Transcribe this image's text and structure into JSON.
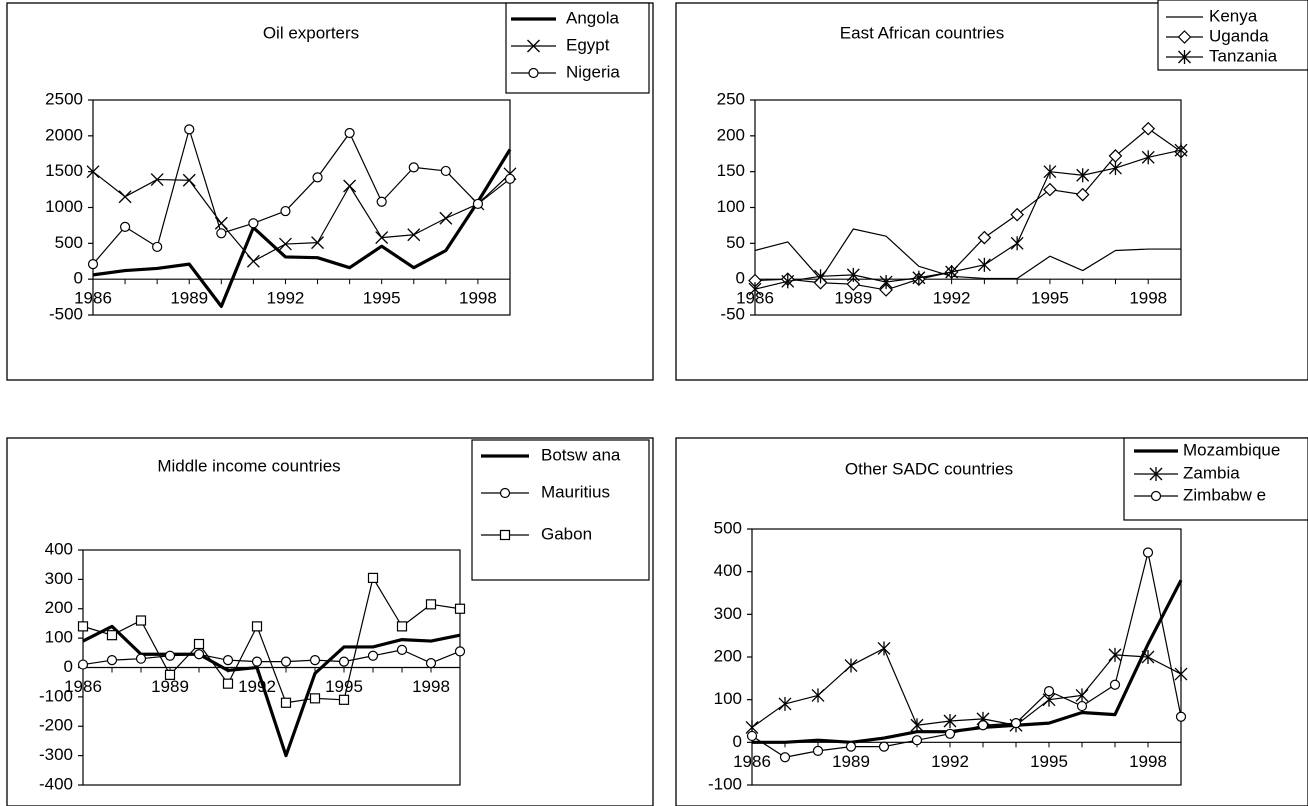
{
  "chart_data": [
    {
      "type": "line",
      "title": "Oil exporters",
      "x": [
        1986,
        1987,
        1988,
        1989,
        1990,
        1991,
        1992,
        1993,
        1994,
        1995,
        1996,
        1997,
        1998,
        1999
      ],
      "x_ticks": [
        1986,
        1989,
        1992,
        1995,
        1998
      ],
      "ylim": [
        -500,
        2500
      ],
      "y_ticks": [
        -500,
        0,
        500,
        1000,
        1500,
        2000,
        2500
      ],
      "grid": false,
      "legend_position": "top-right",
      "series": [
        {
          "name": "Angola",
          "marker": "none",
          "thick": true,
          "values": [
            60,
            120,
            150,
            210,
            -380,
            720,
            310,
            300,
            160,
            460,
            160,
            400,
            1080,
            1810
          ]
        },
        {
          "name": "Egypt",
          "marker": "x",
          "values": [
            1500,
            1150,
            1390,
            1380,
            780,
            250,
            490,
            510,
            1300,
            580,
            620,
            850,
            1050,
            1470
          ]
        },
        {
          "name": "Nigeria",
          "marker": "circle",
          "values": [
            210,
            730,
            450,
            2090,
            640,
            780,
            950,
            1420,
            2040,
            1080,
            1560,
            1510,
            1050,
            1400
          ]
        }
      ]
    },
    {
      "type": "line",
      "title": "East African countries",
      "x": [
        1986,
        1987,
        1988,
        1989,
        1990,
        1991,
        1992,
        1993,
        1994,
        1995,
        1996,
        1997,
        1998,
        1999
      ],
      "x_ticks": [
        1986,
        1989,
        1992,
        1995,
        1998
      ],
      "ylim": [
        -50,
        250
      ],
      "y_ticks": [
        -50,
        0,
        50,
        100,
        150,
        200,
        250
      ],
      "grid": false,
      "legend_position": "top-right",
      "series": [
        {
          "name": "Kenya",
          "marker": "none",
          "values": [
            40,
            52,
            0,
            70,
            60,
            18,
            4,
            1,
            1,
            32,
            12,
            40,
            42,
            42
          ]
        },
        {
          "name": "Uganda",
          "marker": "diamond",
          "values": [
            -2,
            0,
            -5,
            -7,
            -15,
            0,
            10,
            58,
            90,
            125,
            118,
            172,
            210,
            178
          ]
        },
        {
          "name": "Tanzania",
          "marker": "star",
          "values": [
            -14,
            -3,
            4,
            6,
            -4,
            2,
            10,
            20,
            50,
            150,
            145,
            155,
            170,
            180
          ]
        }
      ]
    },
    {
      "type": "line",
      "title": "Middle income countries",
      "x": [
        1986,
        1987,
        1988,
        1989,
        1990,
        1991,
        1992,
        1993,
        1994,
        1995,
        1996,
        1997,
        1998,
        1999
      ],
      "x_ticks": [
        1986,
        1989,
        1992,
        1995,
        1998
      ],
      "ylim": [
        -400,
        400
      ],
      "y_ticks": [
        -400,
        -300,
        -200,
        -100,
        0,
        100,
        200,
        300,
        400
      ],
      "grid": false,
      "legend_position": "top-right",
      "series": [
        {
          "name": "Botsw ana",
          "marker": "none",
          "thick": true,
          "values": [
            90,
            140,
            45,
            45,
            45,
            -10,
            0,
            -300,
            -20,
            70,
            70,
            95,
            90,
            110
          ]
        },
        {
          "name": "Mauritius",
          "marker": "circle",
          "values": [
            10,
            25,
            30,
            40,
            45,
            25,
            20,
            20,
            25,
            20,
            40,
            60,
            15,
            55
          ]
        },
        {
          "name": "Gabon",
          "marker": "square",
          "values": [
            140,
            110,
            160,
            -25,
            80,
            -55,
            140,
            -120,
            -105,
            -110,
            305,
            140,
            215,
            200
          ]
        }
      ]
    },
    {
      "type": "line",
      "title": "Other SADC countries",
      "x": [
        1986,
        1987,
        1988,
        1989,
        1990,
        1991,
        1992,
        1993,
        1994,
        1995,
        1996,
        1997,
        1998,
        1999
      ],
      "x_ticks": [
        1986,
        1989,
        1992,
        1995,
        1998
      ],
      "ylim": [
        -100,
        500
      ],
      "y_ticks": [
        -100,
        0,
        100,
        200,
        300,
        400,
        500
      ],
      "grid": false,
      "legend_position": "top-right",
      "series": [
        {
          "name": "Mozambique",
          "marker": "none",
          "thick": true,
          "values": [
            0,
            0,
            5,
            0,
            10,
            25,
            25,
            35,
            40,
            45,
            70,
            65,
            230,
            380
          ]
        },
        {
          "name": "Zambia",
          "marker": "star",
          "values": [
            35,
            90,
            110,
            180,
            220,
            40,
            50,
            55,
            40,
            100,
            110,
            205,
            200,
            160
          ]
        },
        {
          "name": "Zimbabw e",
          "marker": "circle",
          "values": [
            15,
            -35,
            -20,
            -10,
            -10,
            5,
            20,
            40,
            45,
            120,
            85,
            135,
            445,
            60
          ]
        }
      ]
    }
  ]
}
